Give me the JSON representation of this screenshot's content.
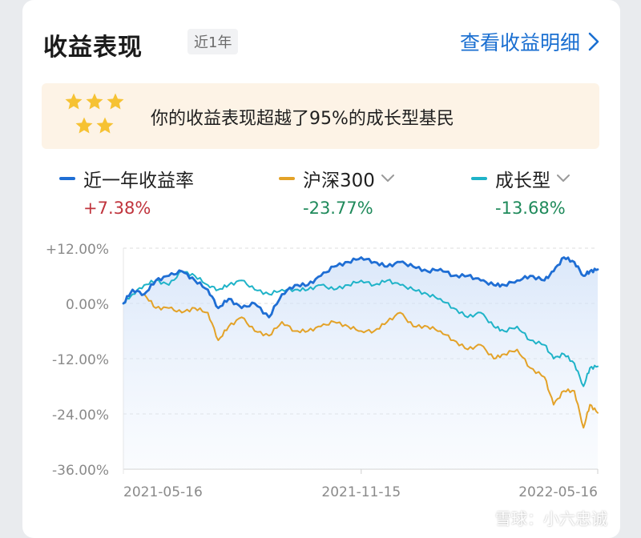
{
  "header": {
    "title": "收益表现",
    "period": "近1年",
    "detail_link": "查看收益明细"
  },
  "banner": {
    "text": "你的收益表现超越了95%的成长型基民",
    "stars": 5
  },
  "legend": [
    {
      "name": "近一年收益率",
      "value": "+7.38%",
      "color": "#1f6ed4",
      "value_color": "#c0343d",
      "dropdown": false
    },
    {
      "name": "沪深300",
      "value": "-23.77%",
      "color": "#e3a228",
      "value_color": "#1f8a5b",
      "dropdown": true
    },
    {
      "name": "成长型",
      "value": "-13.68%",
      "color": "#1fb3c8",
      "value_color": "#1f8a5b",
      "dropdown": true
    }
  ],
  "watermark": "雪球：小六忠诚",
  "chart_data": {
    "type": "line",
    "x_range": [
      "2021-05-16",
      "2022-05-16"
    ],
    "x_tick_labels": [
      "2021-05-16",
      "2021-11-15",
      "2022-05-16"
    ],
    "y_tick_labels": [
      "+12.00%",
      "0.00%",
      "-12.00%",
      "-24.00%",
      "-36.00%"
    ],
    "y_ticks": [
      12,
      0,
      -12,
      -24,
      -36
    ],
    "ylim": [
      -36,
      12
    ],
    "grid": true,
    "series": [
      {
        "name": "近一年收益率",
        "color": "#1f6ed4",
        "points": [
          [
            "2021-05-16",
            0
          ],
          [
            "2021-05-23",
            3
          ],
          [
            "2021-06-01",
            2
          ],
          [
            "2021-06-10",
            5
          ],
          [
            "2021-06-20",
            6
          ],
          [
            "2021-06-30",
            7
          ],
          [
            "2021-07-10",
            5
          ],
          [
            "2021-07-20",
            3
          ],
          [
            "2021-07-28",
            -1
          ],
          [
            "2021-08-05",
            1
          ],
          [
            "2021-08-15",
            -1
          ],
          [
            "2021-08-25",
            0
          ],
          [
            "2021-09-05",
            -3
          ],
          [
            "2021-09-15",
            2
          ],
          [
            "2021-09-25",
            4
          ],
          [
            "2021-10-05",
            4
          ],
          [
            "2021-10-15",
            6
          ],
          [
            "2021-10-25",
            8
          ],
          [
            "2021-11-05",
            9
          ],
          [
            "2021-11-15",
            10
          ],
          [
            "2021-11-25",
            9
          ],
          [
            "2021-12-05",
            8
          ],
          [
            "2021-12-15",
            9
          ],
          [
            "2021-12-25",
            8
          ],
          [
            "2022-01-05",
            7
          ],
          [
            "2022-01-15",
            7.5
          ],
          [
            "2022-01-25",
            6
          ],
          [
            "2022-02-05",
            6
          ],
          [
            "2022-02-15",
            5
          ],
          [
            "2022-02-25",
            4
          ],
          [
            "2022-03-05",
            4
          ],
          [
            "2022-03-15",
            5
          ],
          [
            "2022-03-25",
            6
          ],
          [
            "2022-04-05",
            5
          ],
          [
            "2022-04-12",
            7
          ],
          [
            "2022-04-20",
            10
          ],
          [
            "2022-04-28",
            9
          ],
          [
            "2022-05-05",
            6
          ],
          [
            "2022-05-10",
            7
          ],
          [
            "2022-05-16",
            7.38
          ]
        ]
      },
      {
        "name": "沪深300",
        "color": "#e3a228",
        "points": [
          [
            "2021-05-16",
            0
          ],
          [
            "2021-05-23",
            3
          ],
          [
            "2021-06-01",
            2
          ],
          [
            "2021-06-10",
            -1
          ],
          [
            "2021-06-20",
            -1
          ],
          [
            "2021-06-30",
            -2
          ],
          [
            "2021-07-10",
            -1
          ],
          [
            "2021-07-20",
            -2
          ],
          [
            "2021-07-28",
            -8
          ],
          [
            "2021-08-05",
            -5
          ],
          [
            "2021-08-15",
            -3
          ],
          [
            "2021-08-25",
            -6
          ],
          [
            "2021-09-05",
            -7
          ],
          [
            "2021-09-15",
            -4
          ],
          [
            "2021-09-25",
            -6
          ],
          [
            "2021-10-05",
            -6
          ],
          [
            "2021-10-15",
            -5
          ],
          [
            "2021-10-25",
            -4
          ],
          [
            "2021-11-05",
            -5
          ],
          [
            "2021-11-15",
            -6
          ],
          [
            "2021-11-25",
            -6
          ],
          [
            "2021-12-05",
            -4
          ],
          [
            "2021-12-15",
            -2
          ],
          [
            "2021-12-25",
            -5
          ],
          [
            "2022-01-05",
            -5
          ],
          [
            "2022-01-15",
            -6
          ],
          [
            "2022-01-25",
            -8
          ],
          [
            "2022-02-05",
            -10
          ],
          [
            "2022-02-15",
            -9
          ],
          [
            "2022-02-25",
            -12
          ],
          [
            "2022-03-05",
            -11
          ],
          [
            "2022-03-15",
            -10
          ],
          [
            "2022-03-25",
            -14
          ],
          [
            "2022-04-05",
            -16
          ],
          [
            "2022-04-12",
            -22
          ],
          [
            "2022-04-20",
            -19
          ],
          [
            "2022-04-28",
            -19
          ],
          [
            "2022-05-05",
            -27
          ],
          [
            "2022-05-10",
            -22
          ],
          [
            "2022-05-16",
            -23.77
          ]
        ]
      },
      {
        "name": "成长型",
        "color": "#1fb3c8",
        "points": [
          [
            "2021-05-16",
            0
          ],
          [
            "2021-05-23",
            2
          ],
          [
            "2021-06-01",
            4
          ],
          [
            "2021-06-10",
            5
          ],
          [
            "2021-06-20",
            4
          ],
          [
            "2021-06-30",
            7
          ],
          [
            "2021-07-10",
            6
          ],
          [
            "2021-07-20",
            4
          ],
          [
            "2021-07-28",
            3
          ],
          [
            "2021-08-05",
            4
          ],
          [
            "2021-08-15",
            5
          ],
          [
            "2021-08-25",
            3
          ],
          [
            "2021-09-05",
            2
          ],
          [
            "2021-09-15",
            3
          ],
          [
            "2021-09-25",
            3
          ],
          [
            "2021-10-05",
            3
          ],
          [
            "2021-10-15",
            4
          ],
          [
            "2021-10-25",
            3
          ],
          [
            "2021-11-05",
            4
          ],
          [
            "2021-11-15",
            5
          ],
          [
            "2021-11-25",
            4
          ],
          [
            "2021-12-05",
            5
          ],
          [
            "2021-12-15",
            4
          ],
          [
            "2021-12-25",
            3
          ],
          [
            "2022-01-05",
            2
          ],
          [
            "2022-01-15",
            1
          ],
          [
            "2022-01-25",
            -1
          ],
          [
            "2022-02-05",
            -3
          ],
          [
            "2022-02-15",
            -2
          ],
          [
            "2022-02-25",
            -5
          ],
          [
            "2022-03-05",
            -6
          ],
          [
            "2022-03-15",
            -5
          ],
          [
            "2022-03-25",
            -8
          ],
          [
            "2022-04-05",
            -9
          ],
          [
            "2022-04-12",
            -12
          ],
          [
            "2022-04-20",
            -11
          ],
          [
            "2022-04-28",
            -13
          ],
          [
            "2022-05-05",
            -18
          ],
          [
            "2022-05-10",
            -14
          ],
          [
            "2022-05-16",
            -13.68
          ]
        ]
      }
    ]
  }
}
